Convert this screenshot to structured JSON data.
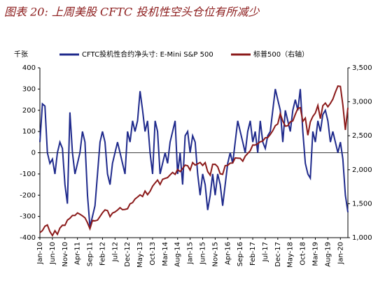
{
  "chart_data": {
    "type": "line",
    "title": "图表 20: 上周美股 CFTC 投机性空头仓位有所减少",
    "y_label": "千张",
    "categories": [
      "Jan-10",
      null,
      null,
      null,
      null,
      "Jun-10",
      null,
      null,
      null,
      null,
      "Nov-10",
      null,
      null,
      null,
      null,
      "Apr-11",
      null,
      null,
      null,
      null,
      "Sep-11",
      null,
      null,
      null,
      null,
      "Feb-12",
      null,
      null,
      null,
      null,
      "Jul-12",
      null,
      null,
      null,
      null,
      "Dec-12",
      null,
      null,
      null,
      null,
      "May-13",
      null,
      null,
      null,
      null,
      "Oct-13",
      null,
      null,
      null,
      null,
      "Mar-14",
      null,
      null,
      null,
      null,
      "Aug-14",
      null,
      null,
      null,
      null,
      "Jan-15",
      null,
      null,
      null,
      null,
      "Jun-15",
      null,
      null,
      null,
      null,
      "Nov-15",
      null,
      null,
      null,
      null,
      "Apr-16",
      null,
      null,
      null,
      null,
      "Sep-16",
      null,
      null,
      null,
      null,
      "Feb-17",
      null,
      null,
      null,
      null,
      "Jul-17",
      null,
      null,
      null,
      null,
      "Dec-17",
      null,
      null,
      null,
      null,
      "May-18",
      null,
      null,
      null,
      null,
      "Oct-18",
      null,
      null,
      null,
      null,
      "Mar-19",
      null,
      null,
      null,
      null,
      "Aug-19",
      null,
      null,
      null,
      null,
      "Jan-20",
      null,
      null,
      null
    ],
    "series": [
      {
        "name": "CFTC投机性合约净头寸: E-Mini S&P 500",
        "color": "#1f2a8c",
        "axis": "y",
        "values": [
          50,
          230,
          220,
          0,
          -50,
          -30,
          -100,
          0,
          50,
          20,
          -150,
          -240,
          190,
          0,
          -100,
          -50,
          0,
          100,
          50,
          -200,
          -350,
          -300,
          -250,
          -100,
          50,
          100,
          50,
          -100,
          -150,
          -50,
          0,
          50,
          0,
          -50,
          -100,
          100,
          50,
          150,
          100,
          150,
          290,
          200,
          100,
          150,
          0,
          -100,
          150,
          100,
          -100,
          -50,
          0,
          -50,
          50,
          100,
          150,
          -100,
          0,
          -150,
          80,
          100,
          0,
          80,
          50,
          -100,
          -200,
          -100,
          -150,
          -270,
          -200,
          -100,
          -200,
          -100,
          -150,
          -250,
          -150,
          -50,
          0,
          -50,
          50,
          150,
          100,
          50,
          0,
          100,
          150,
          50,
          100,
          0,
          150,
          50,
          20,
          80,
          100,
          200,
          300,
          250,
          200,
          50,
          200,
          150,
          100,
          200,
          250,
          200,
          300,
          100,
          -50,
          -100,
          -120,
          100,
          50,
          150,
          100,
          180,
          200,
          150,
          50,
          100,
          50,
          0,
          50,
          -30,
          -200,
          -280
        ]
      },
      {
        "name": "标普500（右轴）",
        "color": "#8b1a1a",
        "axis": "y2",
        "values": [
          1074,
          1104,
          1169,
          1187,
          1089,
          1031,
          1102,
          1049,
          1141,
          1183,
          1181,
          1258,
          1286,
          1327,
          1326,
          1364,
          1345,
          1321,
          1292,
          1219,
          1131,
          1253,
          1247,
          1258,
          1312,
          1366,
          1408,
          1398,
          1310,
          1362,
          1379,
          1406,
          1441,
          1412,
          1416,
          1426,
          1498,
          1515,
          1569,
          1598,
          1631,
          1606,
          1686,
          1633,
          1682,
          1757,
          1806,
          1848,
          1783,
          1859,
          1872,
          1884,
          1924,
          1960,
          1931,
          2003,
          1972,
          2018,
          2068,
          2059,
          1995,
          2105,
          2068,
          2086,
          2107,
          2063,
          2104,
          1972,
          1920,
          2079,
          2080,
          2044,
          1940,
          1932,
          2060,
          2065,
          2097,
          2099,
          2174,
          2171,
          2168,
          2126,
          2199,
          2239,
          2279,
          2364,
          2363,
          2384,
          2412,
          2423,
          2470,
          2472,
          2519,
          2575,
          2648,
          2674,
          2824,
          2714,
          2641,
          2648,
          2705,
          2718,
          2816,
          2902,
          2914,
          2712,
          2760,
          2507,
          2704,
          2784,
          2834,
          2946,
          2752,
          2942,
          2980,
          2926,
          2977,
          3038,
          3141,
          3231,
          3226,
          2954,
          2585,
          2912
        ]
      }
    ],
    "ylim": [
      -400,
      400
    ],
    "yticks": [
      -400,
      -300,
      -200,
      -100,
      0,
      100,
      200,
      300,
      400
    ],
    "y2lim": [
      1000,
      3500
    ],
    "y2ticks": [
      {
        "value": 1000,
        "label": "1,000"
      },
      {
        "value": 1500,
        "label": "1,500"
      },
      {
        "value": 2000,
        "label": "2,000"
      },
      {
        "value": 2500,
        "label": "2,500"
      },
      {
        "value": 3000,
        "label": "3,000"
      },
      {
        "value": 3500,
        "label": "3,500"
      }
    ],
    "legend": "top"
  }
}
